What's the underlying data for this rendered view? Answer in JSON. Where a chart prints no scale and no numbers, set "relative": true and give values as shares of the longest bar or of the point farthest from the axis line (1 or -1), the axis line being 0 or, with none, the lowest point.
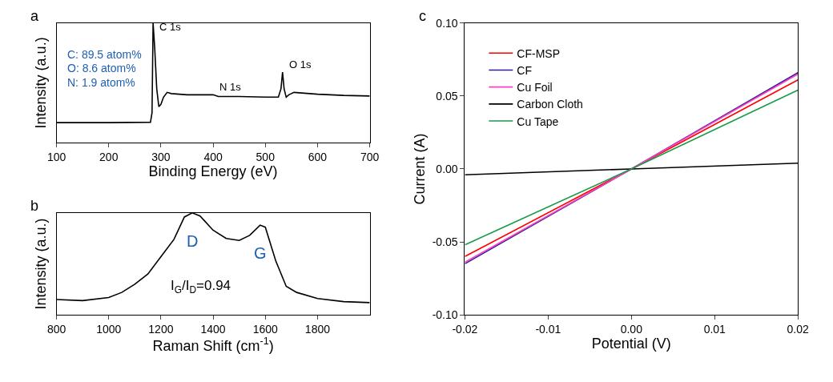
{
  "chart_data": [
    {
      "type": "line",
      "xlabel": "Binding Energy (eV)",
      "ylabel": "Intensity (a.u.)",
      "relative": true,
      "xlim": [
        100,
        700
      ],
      "xticks": [
        100,
        200,
        300,
        400,
        500,
        600,
        700
      ],
      "tick_labels": "x",
      "x": [
        100,
        200,
        280,
        283,
        285,
        288,
        292,
        296,
        300,
        305,
        312,
        320,
        350,
        400,
        410,
        450,
        500,
        525,
        530,
        533,
        536,
        540,
        545,
        555,
        600,
        650,
        700
      ],
      "series": [
        {
          "color": "#000000",
          "values": [
            0.167,
            0.167,
            0.17,
            0.25,
            1.0,
            0.8,
            0.45,
            0.3,
            0.32,
            0.38,
            0.42,
            0.41,
            0.4,
            0.4,
            0.385,
            0.385,
            0.38,
            0.38,
            0.45,
            0.59,
            0.45,
            0.38,
            0.4,
            0.42,
            0.405,
            0.395,
            0.39
          ]
        }
      ],
      "annotations": [
        "a",
        "C: 89.5 atom%",
        "O: 8.6 atom%",
        "N: 1.9 atom%",
        {
          "text": "C 1s",
          "x": 285,
          "y": 1.0
        },
        {
          "text": "N 1s",
          "x": 400,
          "y": 0.4
        },
        {
          "text": "O 1s",
          "x": 533,
          "y": 0.59
        }
      ]
    },
    {
      "type": "line",
      "xlabel": "Raman Shift (cm$^{-1}$)",
      "ylabel": "Intensity (a.u.)",
      "relative": true,
      "xlim": [
        800,
        2000
      ],
      "xticks": [
        800,
        1000,
        1200,
        1400,
        1600,
        1800
      ],
      "tick_labels": "x",
      "x": [
        800,
        900,
        1000,
        1050,
        1100,
        1150,
        1200,
        1250,
        1290,
        1320,
        1350,
        1400,
        1450,
        1500,
        1540,
        1580,
        1600,
        1640,
        1680,
        1720,
        1800,
        1900,
        2000
      ],
      "series": [
        {
          "color": "#000000",
          "values": [
            0.15,
            0.14,
            0.17,
            0.22,
            0.3,
            0.4,
            0.57,
            0.74,
            0.96,
            1.0,
            0.97,
            0.83,
            0.75,
            0.73,
            0.78,
            0.88,
            0.86,
            0.53,
            0.28,
            0.22,
            0.16,
            0.13,
            0.12
          ]
        }
      ],
      "annotations": [
        "b",
        "I$_{G}$/I$_{D}$=0.94",
        {
          "text": "D",
          "x": 1320,
          "y": 1.0
        },
        {
          "text": "G",
          "x": 1580,
          "y": 0.88
        }
      ]
    },
    {
      "type": "line",
      "xlabel": "Potential (V)",
      "ylabel": "Current (A)",
      "xlim": [
        -0.02,
        0.02
      ],
      "ylim": [
        -0.1,
        0.1
      ],
      "legend": "top left",
      "xticks": [
        {
          "value": -0.02,
          "label": "-0.02"
        },
        {
          "value": -0.01,
          "label": "-0.01"
        },
        {
          "value": 0,
          "label": "0.00"
        },
        {
          "value": 0.01,
          "label": "0.01"
        },
        {
          "value": 0.02,
          "label": "0.02"
        }
      ],
      "yticks": [
        {
          "value": -0.1,
          "label": "-0.10"
        },
        {
          "value": -0.05,
          "label": "-0.05"
        },
        {
          "value": 0,
          "label": "0.00"
        },
        {
          "value": 0.05,
          "label": "0.05"
        },
        {
          "value": 0.1,
          "label": "0.10"
        }
      ],
      "x": [
        -0.02,
        0,
        0.02
      ],
      "series": [
        {
          "name": "CF-MSP",
          "color": "#ff0000",
          "values": [
            -0.06,
            0,
            0.061
          ]
        },
        {
          "name": "CF",
          "color": "#2b1e9e",
          "values": [
            -0.065,
            0,
            0.066
          ]
        },
        {
          "name": "Cu Foil",
          "color": "#ff3fbf",
          "values": [
            -0.064,
            0,
            0.065
          ]
        },
        {
          "name": "Carbon Cloth",
          "color": "#000000",
          "values": [
            -0.004,
            0,
            0.004
          ]
        },
        {
          "name": "Cu Tape",
          "color": "#1a9a4a",
          "values": [
            -0.052,
            0,
            0.054
          ]
        }
      ],
      "annotations": [
        "c"
      ]
    }
  ]
}
